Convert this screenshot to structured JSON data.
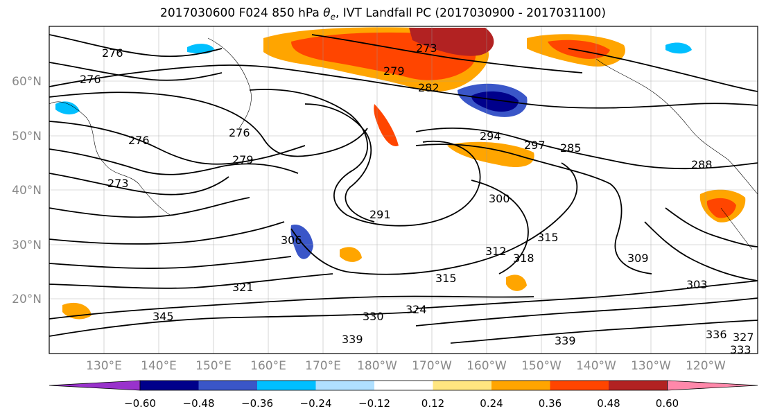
{
  "title": {
    "prefix": "2017030600 F024 850 hPa ",
    "theta": "θ",
    "theta_sub": "e",
    "suffix": ", IVT Landfall PC (2017030900 - 2017031100)"
  },
  "map": {
    "lat_labels": [
      "60°N",
      "50°N",
      "40°N",
      "30°N",
      "20°N"
    ],
    "lon_labels": [
      "130°E",
      "140°E",
      "150°E",
      "160°E",
      "170°E",
      "180°W",
      "170°W",
      "160°W",
      "150°W",
      "140°W",
      "130°W",
      "120°W"
    ],
    "grid": true,
    "contour_labels": [
      "276",
      "276",
      "276",
      "276",
      "273",
      "273",
      "279",
      "279",
      "282",
      "285",
      "288",
      "291",
      "294",
      "297",
      "300",
      "303",
      "306",
      "309",
      "312",
      "315",
      "315",
      "318",
      "321",
      "324",
      "327",
      "330",
      "333",
      "336",
      "339",
      "339",
      "345"
    ]
  },
  "colorbar": {
    "colors": [
      "#9932cc",
      "#00008b",
      "#3a56c8",
      "#00bfff",
      "#b0e0ff",
      "#ffffff",
      "#ffe680",
      "#ffa500",
      "#ff4500",
      "#b22222",
      "#ff88aa"
    ],
    "tick_labels": [
      "−0.60",
      "−0.48",
      "−0.36",
      "−0.24",
      "−0.12",
      "0.12",
      "0.24",
      "0.36",
      "0.48",
      "0.60"
    ],
    "extend": "both"
  }
}
